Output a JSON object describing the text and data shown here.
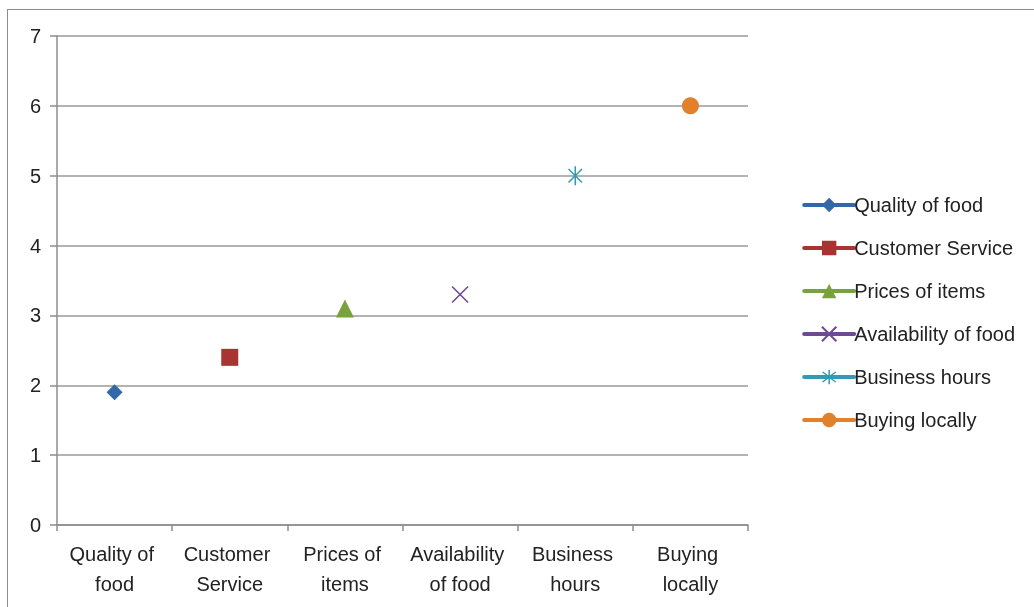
{
  "chart_data": {
    "type": "line",
    "categories": [
      "Quality of food",
      "Customer Service",
      "Prices of items",
      "Availability of food",
      "Business hours",
      "Buying locally"
    ],
    "series": [
      {
        "name": "Quality of food",
        "color": "#3267a8",
        "marker": "diamond",
        "values": [
          1.9,
          null,
          null,
          null,
          null,
          null
        ]
      },
      {
        "name": "Customer Service",
        "color": "#a93331",
        "marker": "square",
        "values": [
          null,
          2.4,
          null,
          null,
          null,
          null
        ]
      },
      {
        "name": "Prices of items",
        "color": "#78a23a",
        "marker": "triangle",
        "values": [
          null,
          null,
          3.1,
          null,
          null,
          null
        ]
      },
      {
        "name": "Availability of food",
        "color": "#6c4a94",
        "marker": "cross",
        "values": [
          null,
          null,
          null,
          3.3,
          null,
          null
        ]
      },
      {
        "name": "Business hours",
        "color": "#3399b4",
        "marker": "star",
        "values": [
          null,
          null,
          null,
          null,
          5,
          null
        ]
      },
      {
        "name": "Buying locally",
        "color": "#e2802c",
        "marker": "circle",
        "values": [
          null,
          null,
          null,
          null,
          null,
          6
        ]
      }
    ],
    "ylim": [
      0,
      7
    ],
    "yticks": [
      0,
      1,
      2,
      3,
      4,
      5,
      6,
      7
    ],
    "grid": "y",
    "legend": "right"
  }
}
